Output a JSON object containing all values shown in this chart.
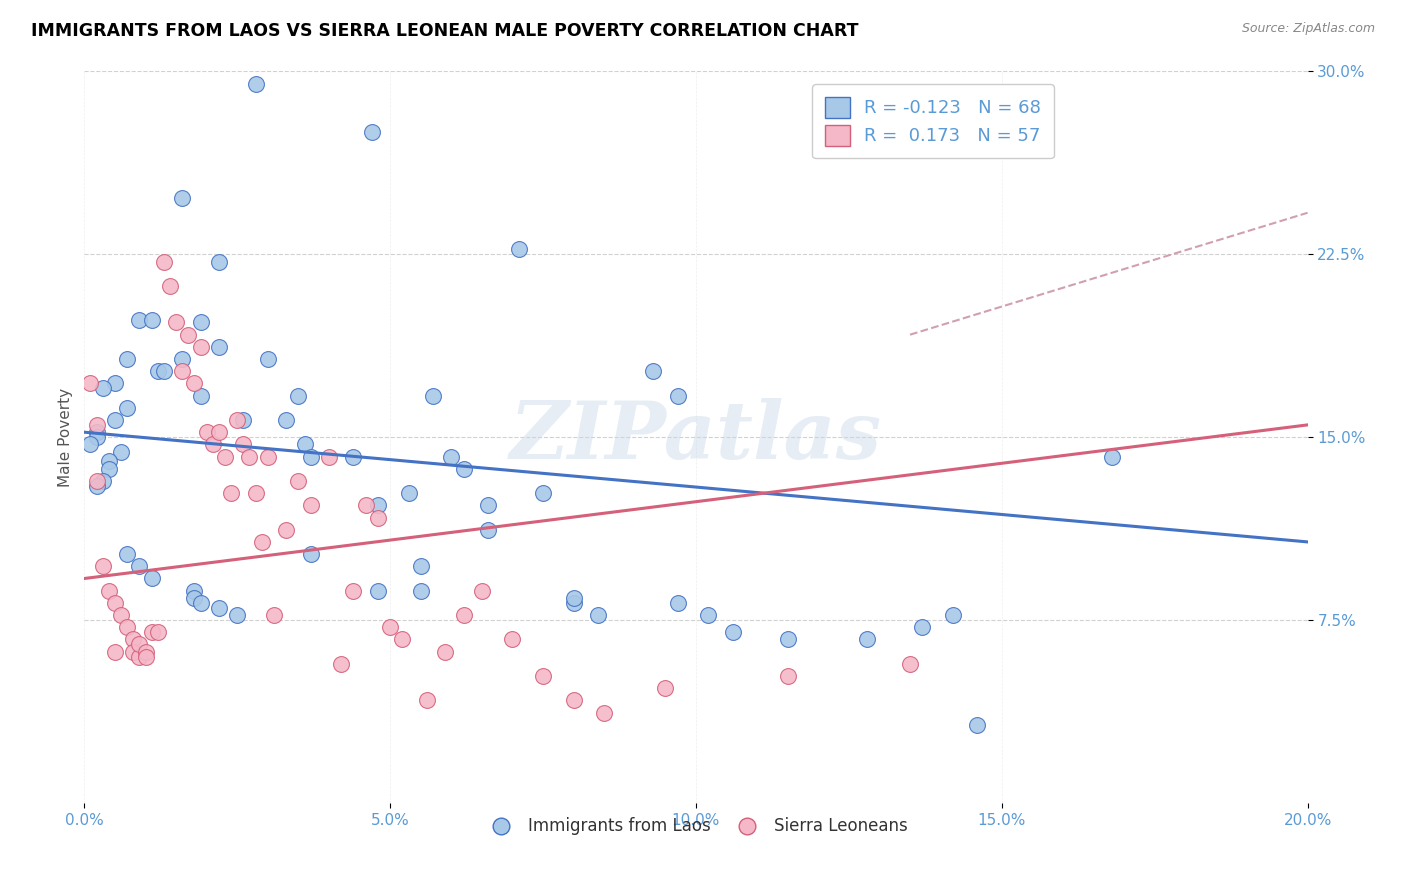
{
  "title": "IMMIGRANTS FROM LAOS VS SIERRA LEONEAN MALE POVERTY CORRELATION CHART",
  "source": "Source: ZipAtlas.com",
  "ylabel": "Male Poverty",
  "xlim": [
    0.0,
    0.2
  ],
  "ylim": [
    0.0,
    0.3
  ],
  "legend_labels": [
    "Immigrants from Laos",
    "Sierra Leoneans"
  ],
  "legend_r_values": [
    "-0.123",
    "0.173"
  ],
  "legend_n_values": [
    "68",
    "57"
  ],
  "color_blue": "#a8c8e8",
  "color_pink": "#f4b8c8",
  "trendline_blue": "#4472c4",
  "trendline_pink": "#d4607a",
  "trendline_dashed_color": "#d0a0b0",
  "watermark": "ZIPatlas",
  "blue_scatter_x": [
    0.028,
    0.047,
    0.016,
    0.022,
    0.009,
    0.011,
    0.007,
    0.012,
    0.005,
    0.003,
    0.007,
    0.005,
    0.002,
    0.002,
    0.001,
    0.006,
    0.004,
    0.004,
    0.003,
    0.002,
    0.019,
    0.016,
    0.013,
    0.022,
    0.019,
    0.03,
    0.026,
    0.035,
    0.036,
    0.033,
    0.037,
    0.057,
    0.06,
    0.044,
    0.048,
    0.062,
    0.066,
    0.075,
    0.007,
    0.009,
    0.011,
    0.018,
    0.018,
    0.019,
    0.022,
    0.025,
    0.053,
    0.055,
    0.08,
    0.084,
    0.097,
    0.102,
    0.142,
    0.137,
    0.168,
    0.106,
    0.115,
    0.128,
    0.146,
    0.071,
    0.093,
    0.097,
    0.08,
    0.066,
    0.055,
    0.037,
    0.048
  ],
  "blue_scatter_y": [
    0.295,
    0.275,
    0.248,
    0.222,
    0.198,
    0.198,
    0.182,
    0.177,
    0.172,
    0.17,
    0.162,
    0.157,
    0.152,
    0.15,
    0.147,
    0.144,
    0.14,
    0.137,
    0.132,
    0.13,
    0.197,
    0.182,
    0.177,
    0.187,
    0.167,
    0.182,
    0.157,
    0.167,
    0.147,
    0.157,
    0.142,
    0.167,
    0.142,
    0.142,
    0.122,
    0.137,
    0.122,
    0.127,
    0.102,
    0.097,
    0.092,
    0.087,
    0.084,
    0.082,
    0.08,
    0.077,
    0.127,
    0.087,
    0.082,
    0.077,
    0.167,
    0.077,
    0.077,
    0.072,
    0.142,
    0.07,
    0.067,
    0.067,
    0.032,
    0.227,
    0.177,
    0.082,
    0.084,
    0.112,
    0.097,
    0.102,
    0.087
  ],
  "pink_scatter_x": [
    0.001,
    0.002,
    0.002,
    0.003,
    0.004,
    0.005,
    0.005,
    0.006,
    0.007,
    0.008,
    0.008,
    0.009,
    0.009,
    0.01,
    0.01,
    0.011,
    0.012,
    0.013,
    0.014,
    0.015,
    0.016,
    0.017,
    0.018,
    0.019,
    0.02,
    0.021,
    0.022,
    0.023,
    0.024,
    0.025,
    0.026,
    0.027,
    0.028,
    0.029,
    0.03,
    0.031,
    0.033,
    0.035,
    0.037,
    0.04,
    0.042,
    0.044,
    0.046,
    0.048,
    0.05,
    0.052,
    0.056,
    0.059,
    0.062,
    0.065,
    0.07,
    0.075,
    0.08,
    0.085,
    0.095,
    0.115,
    0.135
  ],
  "pink_scatter_y": [
    0.172,
    0.155,
    0.132,
    0.097,
    0.087,
    0.082,
    0.062,
    0.077,
    0.072,
    0.067,
    0.062,
    0.06,
    0.065,
    0.062,
    0.06,
    0.07,
    0.07,
    0.222,
    0.212,
    0.197,
    0.177,
    0.192,
    0.172,
    0.187,
    0.152,
    0.147,
    0.152,
    0.142,
    0.127,
    0.157,
    0.147,
    0.142,
    0.127,
    0.107,
    0.142,
    0.077,
    0.112,
    0.132,
    0.122,
    0.142,
    0.057,
    0.087,
    0.122,
    0.117,
    0.072,
    0.067,
    0.042,
    0.062,
    0.077,
    0.087,
    0.067,
    0.052,
    0.042,
    0.037,
    0.047,
    0.052,
    0.057
  ],
  "blue_trend_x": [
    0.0,
    0.2
  ],
  "blue_trend_y": [
    0.152,
    0.107
  ],
  "pink_trend_x": [
    0.0,
    0.2
  ],
  "pink_trend_y": [
    0.092,
    0.155
  ],
  "dashed_trend_x": [
    0.135,
    0.2
  ],
  "dashed_trend_y": [
    0.192,
    0.242
  ]
}
